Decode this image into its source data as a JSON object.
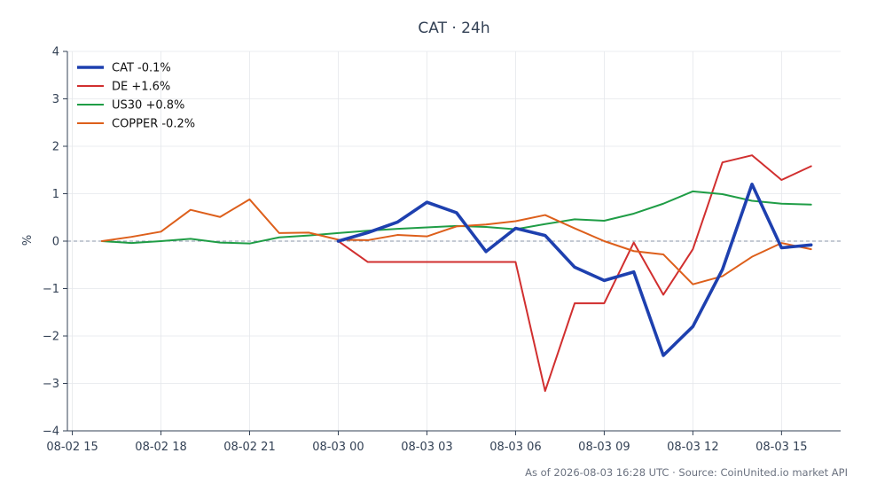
{
  "chart_data": {
    "type": "line",
    "title": "CAT · 24h",
    "ylabel": "%",
    "xlabel": "",
    "ylim": [
      -4,
      4
    ],
    "yticks": [
      -4,
      -3,
      -2,
      -1,
      0,
      1,
      2,
      3,
      4
    ],
    "ytick_labels": [
      "−4",
      "−3",
      "−2",
      "−1",
      "0",
      "1",
      "2",
      "3",
      "4"
    ],
    "xlim": [
      "2026-08-02 14:50",
      "2026-08-03 17:00"
    ],
    "xticks": [
      "2026-08-02 15:00",
      "2026-08-02 18:00",
      "2026-08-02 21:00",
      "2026-08-03 00:00",
      "2026-08-03 03:00",
      "2026-08-03 06:00",
      "2026-08-03 09:00",
      "2026-08-03 12:00",
      "2026-08-03 15:00"
    ],
    "xtick_labels": [
      "08-02 15",
      "08-02 18",
      "08-02 21",
      "08-03 00",
      "08-03 03",
      "08-03 06",
      "08-03 09",
      "08-03 12",
      "08-03 15"
    ],
    "grid": true,
    "zero_line": true,
    "legend_position": "top-left",
    "series": [
      {
        "name": "CAT -0.1%",
        "color": "#1e40af",
        "x": [
          "2026-08-03 00:00",
          "2026-08-03 01:00",
          "2026-08-03 02:00",
          "2026-08-03 03:00",
          "2026-08-03 04:00",
          "2026-08-03 05:00",
          "2026-08-03 06:00",
          "2026-08-03 07:00",
          "2026-08-03 08:00",
          "2026-08-03 09:00",
          "2026-08-03 10:00",
          "2026-08-03 11:00",
          "2026-08-03 12:00",
          "2026-08-03 13:00",
          "2026-08-03 14:00",
          "2026-08-03 15:00",
          "2026-08-03 16:00"
        ],
        "values": [
          0.0,
          0.18,
          0.4,
          0.82,
          0.6,
          -0.22,
          0.27,
          0.12,
          -0.55,
          -0.83,
          -0.65,
          -2.41,
          -1.8,
          -0.6,
          1.2,
          -0.14,
          -0.08
        ]
      },
      {
        "name": "DE +1.6%",
        "color": "#d12f2f",
        "x": [
          "2026-08-03 00:00",
          "2026-08-03 01:00",
          "2026-08-03 02:00",
          "2026-08-03 03:00",
          "2026-08-03 04:00",
          "2026-08-03 05:00",
          "2026-08-03 06:00",
          "2026-08-03 07:00",
          "2026-08-03 08:00",
          "2026-08-03 09:00",
          "2026-08-03 10:00",
          "2026-08-03 11:00",
          "2026-08-03 12:00",
          "2026-08-03 13:00",
          "2026-08-03 14:00",
          "2026-08-03 15:00",
          "2026-08-03 16:00"
        ],
        "values": [
          0.0,
          -0.44,
          -0.44,
          -0.44,
          -0.44,
          -0.44,
          -0.44,
          -3.16,
          -1.31,
          -1.31,
          -0.03,
          -1.13,
          -0.17,
          1.66,
          1.81,
          1.29,
          1.58
        ]
      },
      {
        "name": "US30 +0.8%",
        "color": "#1f9d46",
        "x": [
          "2026-08-02 16:00",
          "2026-08-02 17:00",
          "2026-08-02 18:00",
          "2026-08-02 19:00",
          "2026-08-02 20:00",
          "2026-08-02 21:00",
          "2026-08-02 22:00",
          "2026-08-02 23:00",
          "2026-08-03 00:00",
          "2026-08-03 01:00",
          "2026-08-03 02:00",
          "2026-08-03 03:00",
          "2026-08-03 04:00",
          "2026-08-03 05:00",
          "2026-08-03 06:00",
          "2026-08-03 07:00",
          "2026-08-03 08:00",
          "2026-08-03 09:00",
          "2026-08-03 10:00",
          "2026-08-03 11:00",
          "2026-08-03 12:00",
          "2026-08-03 13:00",
          "2026-08-03 14:00",
          "2026-08-03 15:00",
          "2026-08-03 16:00"
        ],
        "values": [
          0.0,
          -0.04,
          0.0,
          0.05,
          -0.03,
          -0.05,
          0.08,
          0.12,
          0.17,
          0.22,
          0.26,
          0.29,
          0.32,
          0.3,
          0.25,
          0.36,
          0.46,
          0.43,
          0.58,
          0.79,
          1.05,
          0.99,
          0.85,
          0.79,
          0.77
        ]
      },
      {
        "name": "COPPER -0.2%",
        "color": "#dd5f1b",
        "x": [
          "2026-08-02 16:00",
          "2026-08-02 17:00",
          "2026-08-02 18:00",
          "2026-08-02 19:00",
          "2026-08-02 20:00",
          "2026-08-02 21:00",
          "2026-08-02 22:00",
          "2026-08-02 23:00",
          "2026-08-03 00:00",
          "2026-08-03 01:00",
          "2026-08-03 02:00",
          "2026-08-03 03:00",
          "2026-08-03 04:00",
          "2026-08-03 05:00",
          "2026-08-03 06:00",
          "2026-08-03 07:00",
          "2026-08-03 08:00",
          "2026-08-03 09:00",
          "2026-08-03 10:00",
          "2026-08-03 11:00",
          "2026-08-03 12:00",
          "2026-08-03 13:00",
          "2026-08-03 14:00",
          "2026-08-03 15:00",
          "2026-08-03 16:00"
        ],
        "values": [
          0.0,
          0.09,
          0.2,
          0.66,
          0.51,
          0.88,
          0.17,
          0.18,
          0.03,
          0.02,
          0.13,
          0.1,
          0.31,
          0.35,
          0.42,
          0.55,
          0.27,
          0.0,
          -0.21,
          -0.28,
          -0.91,
          -0.74,
          -0.33,
          -0.04,
          -0.17
        ]
      }
    ],
    "footer": "As of 2026-08-03 16:28 UTC · Source: CoinUnited.io market API"
  }
}
